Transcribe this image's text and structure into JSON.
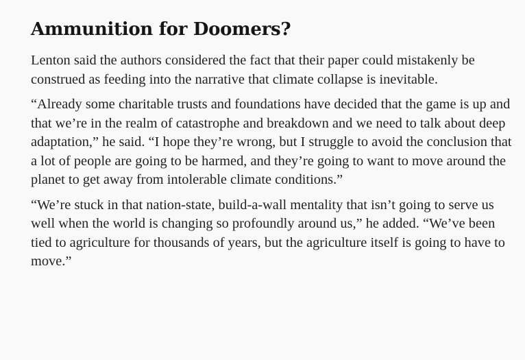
{
  "article": {
    "heading": "Ammunition for Doomers?",
    "paragraphs": [
      "Lenton said the authors considered the fact that their paper could mistakenly be construed as feeding into the narrative that climate collapse is inevitable.",
      "“Already some charitable trusts and foundations have decided that the game is up and that we’re in the realm of catastrophe and breakdown and we need to talk about deep adaptation,” he said. “I hope they’re wrong, but I struggle to avoid the conclusion that a lot of people are going to be harmed, and they’re going to want to move around the planet to get away from intolerable climate conditions.”",
      "“We’re stuck in that nation-state, build-a-wall mentality that isn’t going to serve us well when the world is changing so profoundly around us,” he added. “We’ve been tied to agriculture for thousands of years, but the agriculture itself is going to have to move.”"
    ]
  }
}
